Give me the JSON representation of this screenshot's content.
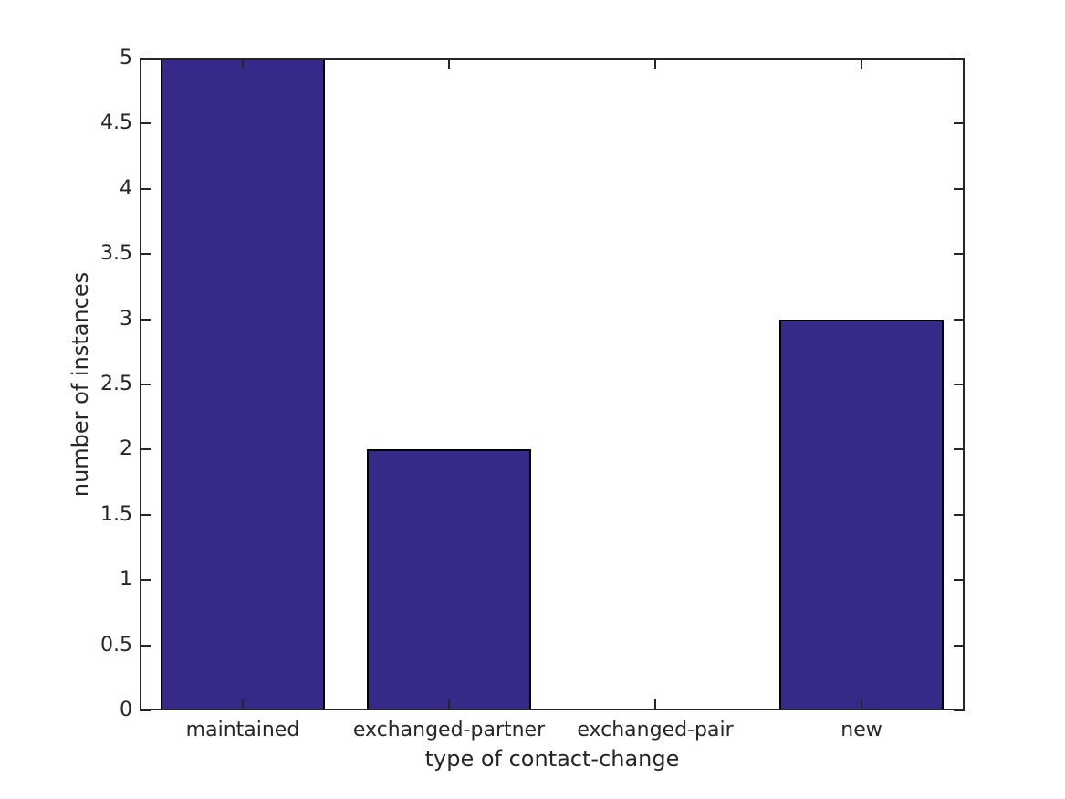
{
  "chart_data": {
    "type": "bar",
    "xlabel": "type of contact-change",
    "ylabel": "number of instances",
    "categories": [
      "maintained",
      "exchanged-partner",
      "exchanged-pair",
      "new"
    ],
    "values": [
      5,
      2,
      0,
      3
    ],
    "ylim": [
      0,
      5
    ],
    "ytick_values": [
      0,
      0.5,
      1,
      1.5,
      2,
      2.5,
      3,
      3.5,
      4,
      4.5,
      5
    ],
    "ytick_labels": [
      "0",
      "0.5",
      "1",
      "1.5",
      "2",
      "2.5",
      "3",
      "3.5",
      "4",
      "4.5",
      "5"
    ],
    "bar_width_fraction": 0.8,
    "grid": false,
    "box": true,
    "tick_direction": "in",
    "legend": null,
    "colors": {
      "bar_fill": "#352A87",
      "bar_edge": "#000000",
      "axis": "#262626",
      "text": "#262626",
      "background": "#FFFFFF"
    }
  }
}
